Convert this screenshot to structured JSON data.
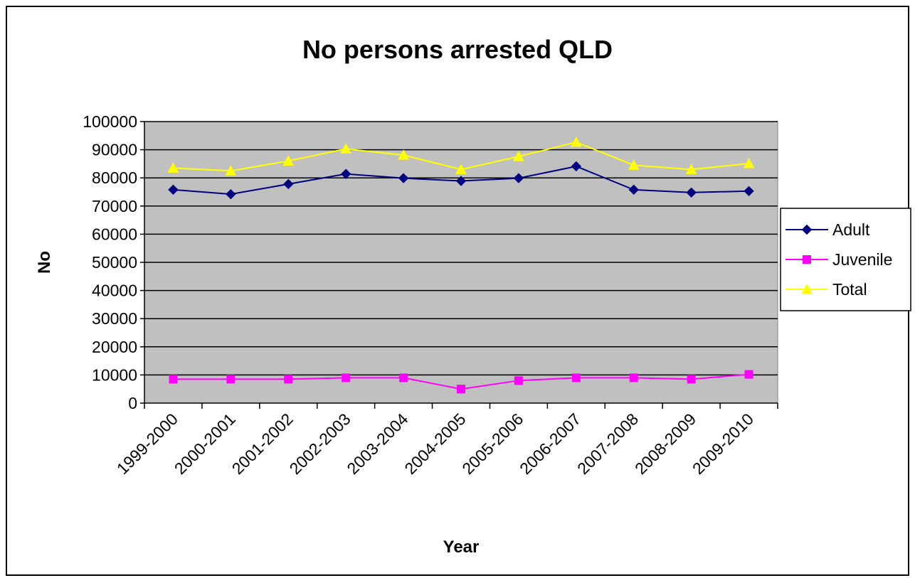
{
  "chart_data": {
    "type": "line",
    "title": "No persons arrested QLD",
    "xlabel": "Year",
    "ylabel": "No",
    "categories": [
      "1999-2000",
      "2000-2001",
      "2001-2002",
      "2002-2003",
      "2003-2004",
      "2004-2005",
      "2005-2006",
      "2006-2007",
      "2007-2008",
      "2008-2009",
      "2009-2010"
    ],
    "ylim": [
      0,
      100000
    ],
    "yticks": [
      0,
      10000,
      20000,
      30000,
      40000,
      50000,
      60000,
      70000,
      80000,
      90000,
      100000
    ],
    "ytick_labels": [
      "0",
      "10000",
      "20000",
      "30000",
      "40000",
      "50000",
      "60000",
      "70000",
      "80000",
      "90000",
      "100000"
    ],
    "grid": true,
    "legend_position": "right",
    "plot_background": "#c0c0c0",
    "series": [
      {
        "name": "Adult",
        "color": "#000080",
        "marker": "diamond",
        "values": [
          75800,
          74200,
          77800,
          81400,
          79900,
          78900,
          79900,
          84100,
          75800,
          74800,
          75300
        ]
      },
      {
        "name": "Juvenile",
        "color": "#ff00ff",
        "marker": "square",
        "values": [
          8500,
          8500,
          8500,
          9000,
          9000,
          5000,
          8000,
          9000,
          9000,
          8500,
          10200
        ]
      },
      {
        "name": "Total",
        "color": "#ffff00",
        "marker": "triangle",
        "values": [
          83500,
          82500,
          86000,
          90300,
          88100,
          83000,
          87600,
          92700,
          84500,
          83000,
          85100
        ]
      }
    ]
  }
}
